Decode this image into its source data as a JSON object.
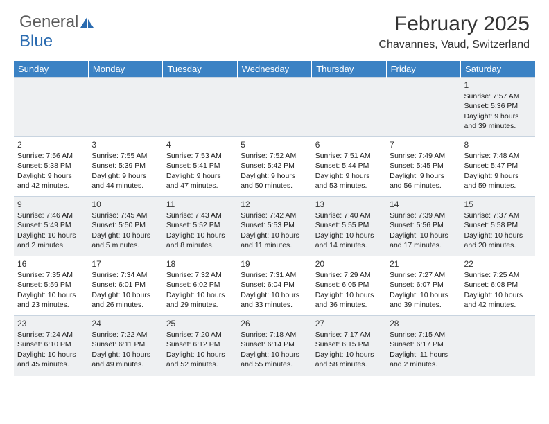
{
  "logo": {
    "text1": "General",
    "text2": "Blue"
  },
  "title": "February 2025",
  "location": "Chavannes, Vaud, Switzerland",
  "header_bg": "#3b82c4",
  "alt_row_bg": "#eef0f2",
  "border_color": "#c8d4e0",
  "days_of_week": [
    "Sunday",
    "Monday",
    "Tuesday",
    "Wednesday",
    "Thursday",
    "Friday",
    "Saturday"
  ],
  "weeks": [
    [
      null,
      null,
      null,
      null,
      null,
      null,
      {
        "n": "1",
        "sr": "Sunrise: 7:57 AM",
        "ss": "Sunset: 5:36 PM",
        "d1": "Daylight: 9 hours",
        "d2": "and 39 minutes."
      }
    ],
    [
      {
        "n": "2",
        "sr": "Sunrise: 7:56 AM",
        "ss": "Sunset: 5:38 PM",
        "d1": "Daylight: 9 hours",
        "d2": "and 42 minutes."
      },
      {
        "n": "3",
        "sr": "Sunrise: 7:55 AM",
        "ss": "Sunset: 5:39 PM",
        "d1": "Daylight: 9 hours",
        "d2": "and 44 minutes."
      },
      {
        "n": "4",
        "sr": "Sunrise: 7:53 AM",
        "ss": "Sunset: 5:41 PM",
        "d1": "Daylight: 9 hours",
        "d2": "and 47 minutes."
      },
      {
        "n": "5",
        "sr": "Sunrise: 7:52 AM",
        "ss": "Sunset: 5:42 PM",
        "d1": "Daylight: 9 hours",
        "d2": "and 50 minutes."
      },
      {
        "n": "6",
        "sr": "Sunrise: 7:51 AM",
        "ss": "Sunset: 5:44 PM",
        "d1": "Daylight: 9 hours",
        "d2": "and 53 minutes."
      },
      {
        "n": "7",
        "sr": "Sunrise: 7:49 AM",
        "ss": "Sunset: 5:45 PM",
        "d1": "Daylight: 9 hours",
        "d2": "and 56 minutes."
      },
      {
        "n": "8",
        "sr": "Sunrise: 7:48 AM",
        "ss": "Sunset: 5:47 PM",
        "d1": "Daylight: 9 hours",
        "d2": "and 59 minutes."
      }
    ],
    [
      {
        "n": "9",
        "sr": "Sunrise: 7:46 AM",
        "ss": "Sunset: 5:49 PM",
        "d1": "Daylight: 10 hours",
        "d2": "and 2 minutes."
      },
      {
        "n": "10",
        "sr": "Sunrise: 7:45 AM",
        "ss": "Sunset: 5:50 PM",
        "d1": "Daylight: 10 hours",
        "d2": "and 5 minutes."
      },
      {
        "n": "11",
        "sr": "Sunrise: 7:43 AM",
        "ss": "Sunset: 5:52 PM",
        "d1": "Daylight: 10 hours",
        "d2": "and 8 minutes."
      },
      {
        "n": "12",
        "sr": "Sunrise: 7:42 AM",
        "ss": "Sunset: 5:53 PM",
        "d1": "Daylight: 10 hours",
        "d2": "and 11 minutes."
      },
      {
        "n": "13",
        "sr": "Sunrise: 7:40 AM",
        "ss": "Sunset: 5:55 PM",
        "d1": "Daylight: 10 hours",
        "d2": "and 14 minutes."
      },
      {
        "n": "14",
        "sr": "Sunrise: 7:39 AM",
        "ss": "Sunset: 5:56 PM",
        "d1": "Daylight: 10 hours",
        "d2": "and 17 minutes."
      },
      {
        "n": "15",
        "sr": "Sunrise: 7:37 AM",
        "ss": "Sunset: 5:58 PM",
        "d1": "Daylight: 10 hours",
        "d2": "and 20 minutes."
      }
    ],
    [
      {
        "n": "16",
        "sr": "Sunrise: 7:35 AM",
        "ss": "Sunset: 5:59 PM",
        "d1": "Daylight: 10 hours",
        "d2": "and 23 minutes."
      },
      {
        "n": "17",
        "sr": "Sunrise: 7:34 AM",
        "ss": "Sunset: 6:01 PM",
        "d1": "Daylight: 10 hours",
        "d2": "and 26 minutes."
      },
      {
        "n": "18",
        "sr": "Sunrise: 7:32 AM",
        "ss": "Sunset: 6:02 PM",
        "d1": "Daylight: 10 hours",
        "d2": "and 29 minutes."
      },
      {
        "n": "19",
        "sr": "Sunrise: 7:31 AM",
        "ss": "Sunset: 6:04 PM",
        "d1": "Daylight: 10 hours",
        "d2": "and 33 minutes."
      },
      {
        "n": "20",
        "sr": "Sunrise: 7:29 AM",
        "ss": "Sunset: 6:05 PM",
        "d1": "Daylight: 10 hours",
        "d2": "and 36 minutes."
      },
      {
        "n": "21",
        "sr": "Sunrise: 7:27 AM",
        "ss": "Sunset: 6:07 PM",
        "d1": "Daylight: 10 hours",
        "d2": "and 39 minutes."
      },
      {
        "n": "22",
        "sr": "Sunrise: 7:25 AM",
        "ss": "Sunset: 6:08 PM",
        "d1": "Daylight: 10 hours",
        "d2": "and 42 minutes."
      }
    ],
    [
      {
        "n": "23",
        "sr": "Sunrise: 7:24 AM",
        "ss": "Sunset: 6:10 PM",
        "d1": "Daylight: 10 hours",
        "d2": "and 45 minutes."
      },
      {
        "n": "24",
        "sr": "Sunrise: 7:22 AM",
        "ss": "Sunset: 6:11 PM",
        "d1": "Daylight: 10 hours",
        "d2": "and 49 minutes."
      },
      {
        "n": "25",
        "sr": "Sunrise: 7:20 AM",
        "ss": "Sunset: 6:12 PM",
        "d1": "Daylight: 10 hours",
        "d2": "and 52 minutes."
      },
      {
        "n": "26",
        "sr": "Sunrise: 7:18 AM",
        "ss": "Sunset: 6:14 PM",
        "d1": "Daylight: 10 hours",
        "d2": "and 55 minutes."
      },
      {
        "n": "27",
        "sr": "Sunrise: 7:17 AM",
        "ss": "Sunset: 6:15 PM",
        "d1": "Daylight: 10 hours",
        "d2": "and 58 minutes."
      },
      {
        "n": "28",
        "sr": "Sunrise: 7:15 AM",
        "ss": "Sunset: 6:17 PM",
        "d1": "Daylight: 11 hours",
        "d2": "and 2 minutes."
      },
      null
    ]
  ]
}
